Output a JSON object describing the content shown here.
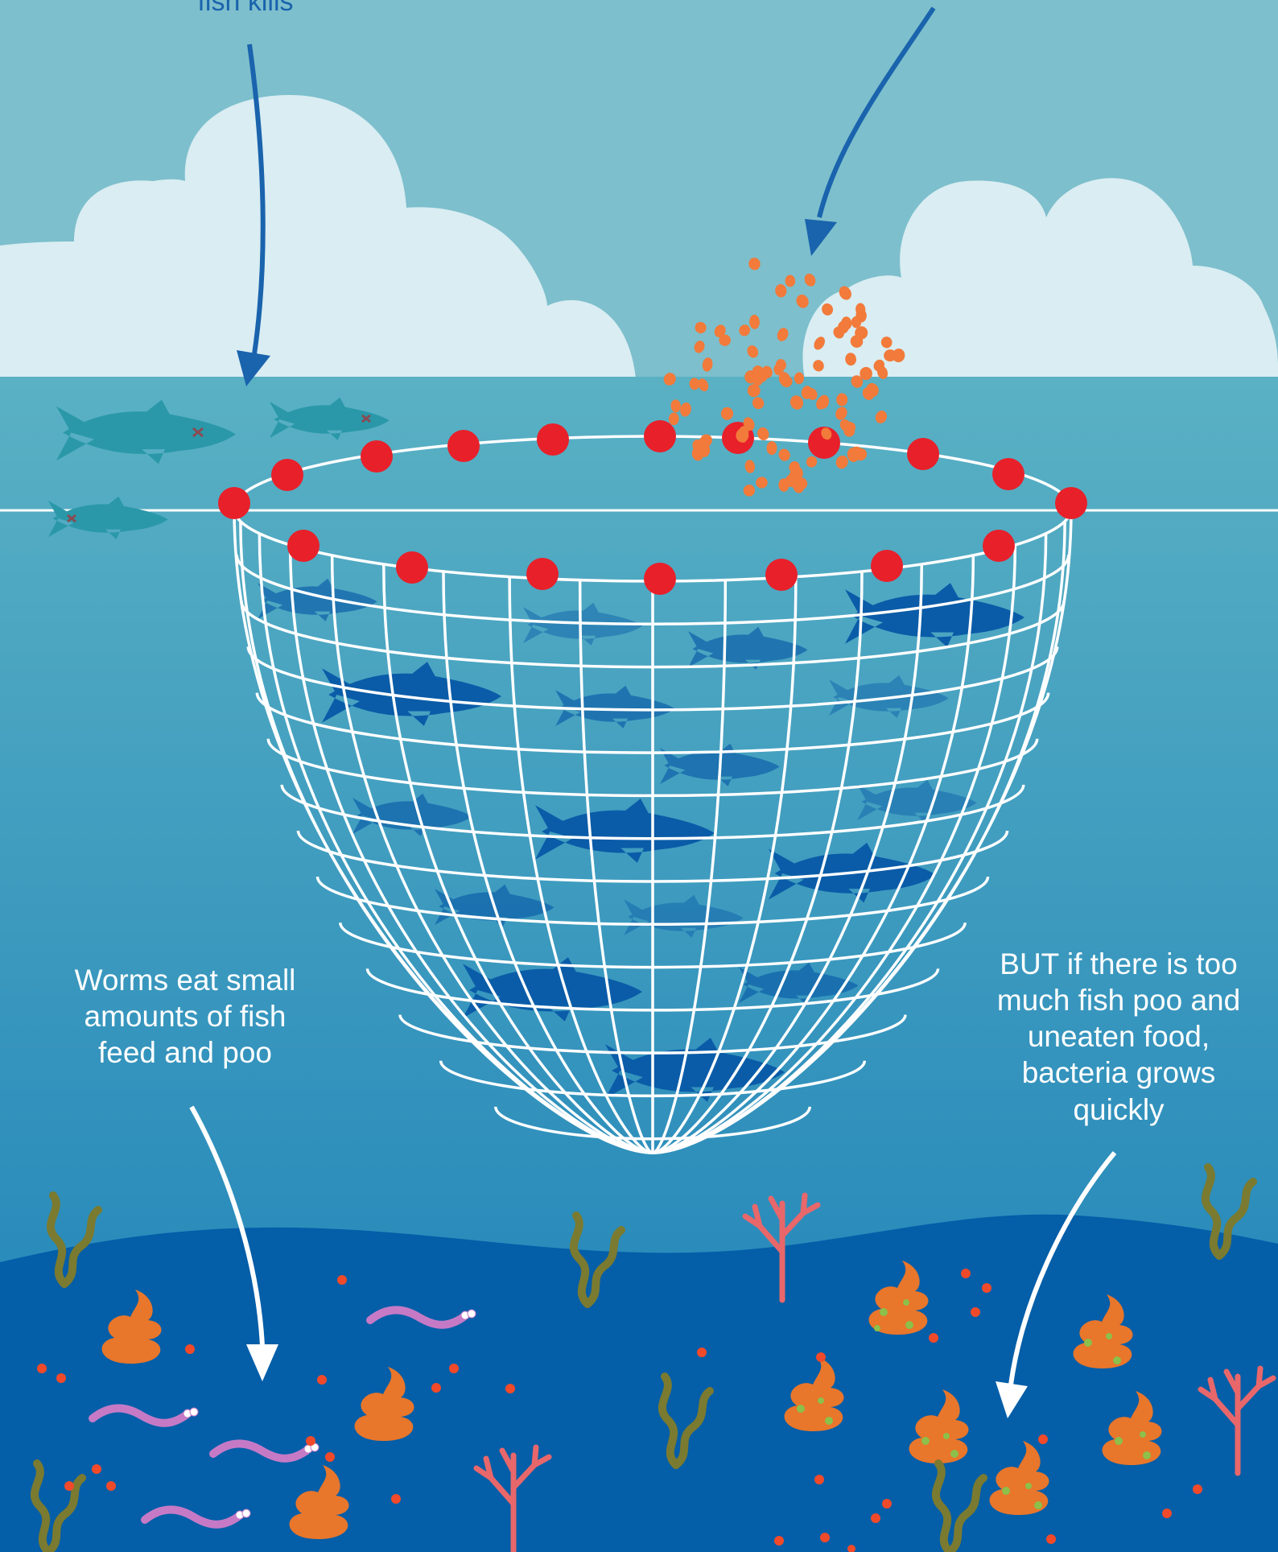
{
  "labels": {
    "fish_kills": "fish kills",
    "worms": [
      "Worms eat small",
      "amounts of fish",
      "feed and poo"
    ],
    "bacteria": [
      "BUT if there is too",
      "much fish poo and",
      "uneaten food,",
      "bacteria grows",
      "quickly"
    ]
  },
  "colors": {
    "sky": "#7dbfcc",
    "cloud": "#d9edf2",
    "water_top": "#5ab1c4",
    "water_bottom": "#1a7fb8",
    "seabed": "#045ea8",
    "net": "#ffffff",
    "float": "#e8202a",
    "feed": "#f27a3a",
    "farmed_fish": "#0a5ca8",
    "dead_fish": "#2a98a8",
    "poo": "#e8762b",
    "worm": "#c67ac6",
    "seaweed": "#7a7a30",
    "coral": "#e8676a",
    "blue_arrow": "#1a63ad",
    "white_arrow": "#ffffff"
  }
}
